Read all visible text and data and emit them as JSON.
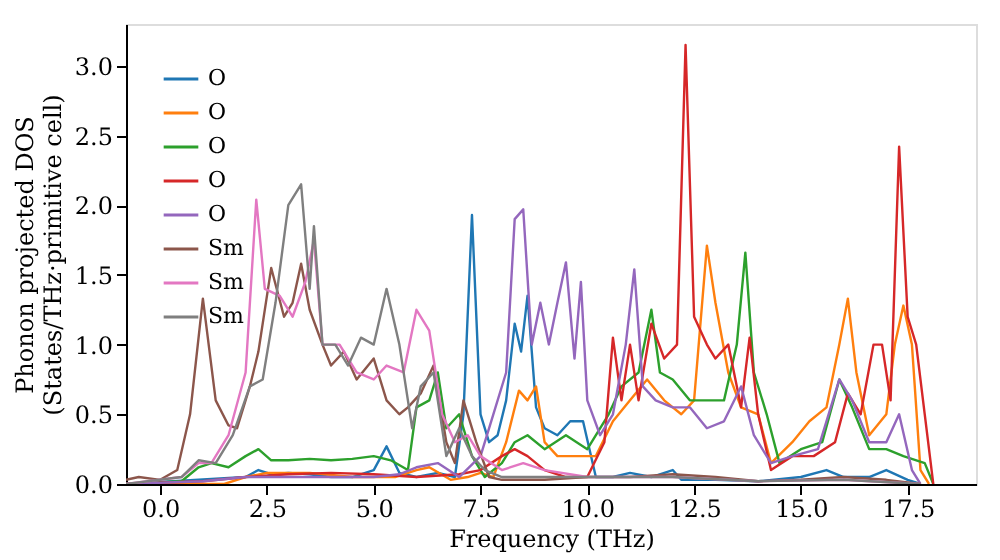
{
  "chart_data": {
    "type": "line",
    "xlabel": "Frequency (THz)",
    "ylabel": "Phonon projected DOS\n(States/THz·primitive cell)",
    "xlim": [
      -0.8,
      19.1
    ],
    "ylim": [
      0,
      3.3
    ],
    "xticks": [
      {
        "value": 0,
        "label": "0.0"
      },
      {
        "value": 2.5,
        "label": "2.5"
      },
      {
        "value": 5,
        "label": "5.0"
      },
      {
        "value": 7.5,
        "label": "7.5"
      },
      {
        "value": 10,
        "label": "10.0"
      },
      {
        "value": 12.5,
        "label": "12.5"
      },
      {
        "value": 15,
        "label": "15.0"
      },
      {
        "value": 17.5,
        "label": "17.5"
      }
    ],
    "yticks": [
      {
        "value": 0,
        "label": "0.0"
      },
      {
        "value": 0.5,
        "label": "0.5"
      },
      {
        "value": 1,
        "label": "1.0"
      },
      {
        "value": 1.5,
        "label": "1.5"
      },
      {
        "value": 2,
        "label": "2.0"
      },
      {
        "value": 2.5,
        "label": "2.5"
      },
      {
        "value": 3,
        "label": "3.0"
      }
    ],
    "grid": false,
    "legend": "top left",
    "line_style": "solid",
    "marker": "none",
    "series": [
      {
        "name": "O",
        "color": "#1f77b4",
        "x": [
          -0.8,
          2,
          2.3,
          2.6,
          3,
          3.5,
          4,
          4.5,
          5,
          5.3,
          5.6,
          6,
          6.5,
          6.9,
          7.1,
          7.3,
          7.5,
          7.7,
          7.9,
          8.1,
          8.3,
          8.45,
          8.6,
          8.8,
          9.0,
          9.3,
          9.6,
          9.9,
          10.2,
          10.6,
          11,
          11.5,
          12,
          12.2,
          13,
          14,
          15,
          15.6,
          16,
          16.6,
          17,
          17.5,
          17.8
        ],
        "values": [
          0,
          0.05,
          0.1,
          0.07,
          0.08,
          0.07,
          0.05,
          0.05,
          0.1,
          0.27,
          0.08,
          0.05,
          0.08,
          0.05,
          0.5,
          1.93,
          0.5,
          0.3,
          0.35,
          0.6,
          1.15,
          0.95,
          1.35,
          0.55,
          0.4,
          0.35,
          0.45,
          0.45,
          0.05,
          0.05,
          0.08,
          0.05,
          0.1,
          0.03,
          0.03,
          0.02,
          0.05,
          0.1,
          0.05,
          0.05,
          0.1,
          0.03,
          0
        ]
      },
      {
        "name": "O",
        "color": "#ff7f0e",
        "x": [
          -0.8,
          1.5,
          2,
          2.5,
          3.5,
          4.5,
          5.5,
          6,
          6.3,
          6.8,
          7.2,
          7.5,
          7.8,
          8.1,
          8.4,
          8.6,
          8.8,
          9,
          9.3,
          9.8,
          10.2,
          10.6,
          11,
          11.4,
          11.8,
          12.2,
          12.5,
          12.8,
          13.0,
          13.3,
          13.6,
          14,
          14.3,
          14.8,
          15.2,
          15.6,
          15.9,
          16.1,
          16.3,
          16.6,
          17,
          17.2,
          17.4,
          17.6,
          17.8,
          18.0
        ],
        "values": [
          0,
          0,
          0.05,
          0.08,
          0.08,
          0.05,
          0.05,
          0.1,
          0.12,
          0.03,
          0.05,
          0.08,
          0.05,
          0.3,
          0.67,
          0.6,
          0.7,
          0.3,
          0.2,
          0.2,
          0.2,
          0.45,
          0.6,
          0.75,
          0.6,
          0.5,
          0.6,
          1.71,
          1.3,
          0.8,
          0.55,
          0.5,
          0.15,
          0.3,
          0.45,
          0.55,
          1.0,
          1.33,
          0.8,
          0.35,
          0.5,
          1.0,
          1.28,
          1.0,
          0.1,
          0
        ]
      },
      {
        "name": "O",
        "color": "#2ca02c",
        "x": [
          -0.8,
          0.5,
          0.9,
          1.2,
          1.6,
          2,
          2.3,
          2.6,
          3,
          3.5,
          4,
          4.5,
          5,
          5.4,
          5.8,
          6.0,
          6.3,
          6.5,
          6.7,
          7.0,
          7.3,
          7.6,
          8,
          8.3,
          8.6,
          9,
          9.5,
          10,
          10.5,
          10.8,
          11.2,
          11.5,
          11.7,
          12,
          12.4,
          12.8,
          13.2,
          13.5,
          13.7,
          13.9,
          14.2,
          14.5,
          15,
          15.5,
          15.9,
          16.2,
          16.6,
          17,
          17.4,
          17.9,
          18.1
        ],
        "values": [
          0,
          0.02,
          0.12,
          0.15,
          0.12,
          0.2,
          0.25,
          0.17,
          0.17,
          0.18,
          0.17,
          0.18,
          0.2,
          0.17,
          0.1,
          0.55,
          0.6,
          0.8,
          0.4,
          0.5,
          0.2,
          0.05,
          0.15,
          0.3,
          0.35,
          0.25,
          0.35,
          0.25,
          0.5,
          0.7,
          0.8,
          1.25,
          0.8,
          0.75,
          0.6,
          0.6,
          0.6,
          1.0,
          1.66,
          0.8,
          0.5,
          0.15,
          0.25,
          0.3,
          0.75,
          0.55,
          0.25,
          0.25,
          0.2,
          0.15,
          0
        ]
      },
      {
        "name": "O",
        "color": "#d62728",
        "x": [
          -0.8,
          1,
          2,
          3,
          4,
          5,
          6,
          7,
          7.5,
          8,
          8.3,
          8.6,
          9,
          9.5,
          10,
          10.4,
          10.6,
          10.8,
          11,
          11.2,
          11.5,
          11.8,
          12.1,
          12.3,
          12.5,
          12.8,
          13.0,
          13.3,
          13.6,
          13.8,
          14,
          14.3,
          14.8,
          15.3,
          15.8,
          16.1,
          16.4,
          16.7,
          16.9,
          17.1,
          17.3,
          17.5,
          17.7,
          17.9,
          18.1
        ],
        "values": [
          0,
          0.02,
          0.05,
          0.07,
          0.08,
          0.07,
          0.05,
          0.07,
          0.1,
          0.2,
          0.25,
          0.2,
          0.1,
          0.05,
          0.05,
          0.3,
          1.05,
          0.6,
          1.0,
          0.6,
          1.15,
          0.9,
          1.0,
          3.15,
          1.2,
          1.0,
          0.9,
          1.0,
          0.55,
          1.05,
          0.5,
          0.1,
          0.2,
          0.2,
          0.3,
          0.65,
          0.5,
          1.0,
          1.0,
          0.6,
          2.42,
          1.2,
          1.0,
          0.5,
          0
        ]
      },
      {
        "name": "O",
        "color": "#9467bd",
        "x": [
          -0.8,
          1,
          2,
          3,
          4,
          5,
          5.6,
          6,
          6.5,
          7,
          7.5,
          7.8,
          8.1,
          8.3,
          8.5,
          8.7,
          8.9,
          9.1,
          9.3,
          9.5,
          9.7,
          9.85,
          10.0,
          10.3,
          10.6,
          10.9,
          11.1,
          11.3,
          11.6,
          12,
          12.4,
          12.8,
          13.2,
          13.6,
          13.9,
          14.3,
          14.8,
          15.4,
          15.9,
          16.2,
          16.6,
          17,
          17.3,
          17.6,
          17.8
        ],
        "values": [
          0,
          0.02,
          0.05,
          0.05,
          0.05,
          0.05,
          0.07,
          0.12,
          0.15,
          0.05,
          0.2,
          0.5,
          0.8,
          1.9,
          1.97,
          1.0,
          1.3,
          1.0,
          1.3,
          1.59,
          0.9,
          1.45,
          0.6,
          0.35,
          0.5,
          1.0,
          1.54,
          0.7,
          0.6,
          0.55,
          0.55,
          0.4,
          0.45,
          0.7,
          0.35,
          0.15,
          0.2,
          0.25,
          0.75,
          0.6,
          0.3,
          0.3,
          0.5,
          0.1,
          0
        ]
      },
      {
        "name": "Sm",
        "color": "#8c564b",
        "x": [
          -0.8,
          -0.5,
          0,
          0.4,
          0.7,
          1.0,
          1.3,
          1.6,
          1.8,
          2.1,
          2.3,
          2.6,
          2.9,
          3.1,
          3.3,
          3.5,
          3.8,
          4.0,
          4.3,
          4.6,
          5.0,
          5.3,
          5.6,
          5.8,
          6.1,
          6.4,
          6.7,
          6.9,
          7.1,
          7.4,
          7.7,
          8,
          9,
          10,
          11,
          12,
          13,
          14,
          15,
          16,
          17,
          17.8
        ],
        "values": [
          0.03,
          0.05,
          0.03,
          0.1,
          0.5,
          1.33,
          0.6,
          0.42,
          0.4,
          0.7,
          0.95,
          1.55,
          1.2,
          1.3,
          1.58,
          1.25,
          1.0,
          0.85,
          0.95,
          0.75,
          0.9,
          0.6,
          0.5,
          0.55,
          0.65,
          0.85,
          0.3,
          0.15,
          0.6,
          0.3,
          0.05,
          0.03,
          0.03,
          0.05,
          0.05,
          0.07,
          0.05,
          0.02,
          0.03,
          0.05,
          0.03,
          0
        ]
      },
      {
        "name": "Sm",
        "color": "#e377c2",
        "x": [
          -0.8,
          0.5,
          0.9,
          1.2,
          1.6,
          2.0,
          2.25,
          2.45,
          2.8,
          3.1,
          3.4,
          3.6,
          3.8,
          4.2,
          4.6,
          5.0,
          5.3,
          5.7,
          6.0,
          6.3,
          6.6,
          6.9,
          7.2,
          7.5,
          8,
          8.5,
          9,
          10,
          12,
          14,
          16,
          17.8
        ],
        "values": [
          0,
          0.05,
          0.15,
          0.15,
          0.35,
          0.8,
          2.04,
          1.4,
          1.35,
          1.2,
          1.45,
          1.75,
          1.0,
          1.0,
          0.8,
          0.75,
          0.85,
          0.8,
          1.25,
          1.1,
          0.5,
          0.3,
          0.35,
          0.2,
          0.1,
          0.15,
          0.1,
          0.05,
          0.05,
          0.02,
          0.03,
          0
        ]
      },
      {
        "name": "Sm",
        "color": "#7f7f7f",
        "x": [
          -0.8,
          0.5,
          0.9,
          1.3,
          1.7,
          2.1,
          2.4,
          2.7,
          3.0,
          3.3,
          3.5,
          3.6,
          3.8,
          4.1,
          4.4,
          4.7,
          5.0,
          5.3,
          5.6,
          5.9,
          6.1,
          6.4,
          6.7,
          7.0,
          7.3,
          7.6,
          8,
          9,
          10,
          11,
          12,
          14,
          16,
          17.8
        ],
        "values": [
          0,
          0.05,
          0.17,
          0.15,
          0.35,
          0.7,
          0.75,
          1.3,
          2.0,
          2.15,
          1.4,
          1.85,
          1.0,
          1.0,
          0.85,
          1.05,
          1.0,
          1.4,
          1.0,
          0.4,
          0.7,
          0.8,
          0.2,
          0.4,
          0.2,
          0.1,
          0.05,
          0.05,
          0.05,
          0.05,
          0.05,
          0.02,
          0.03,
          0
        ]
      }
    ]
  }
}
